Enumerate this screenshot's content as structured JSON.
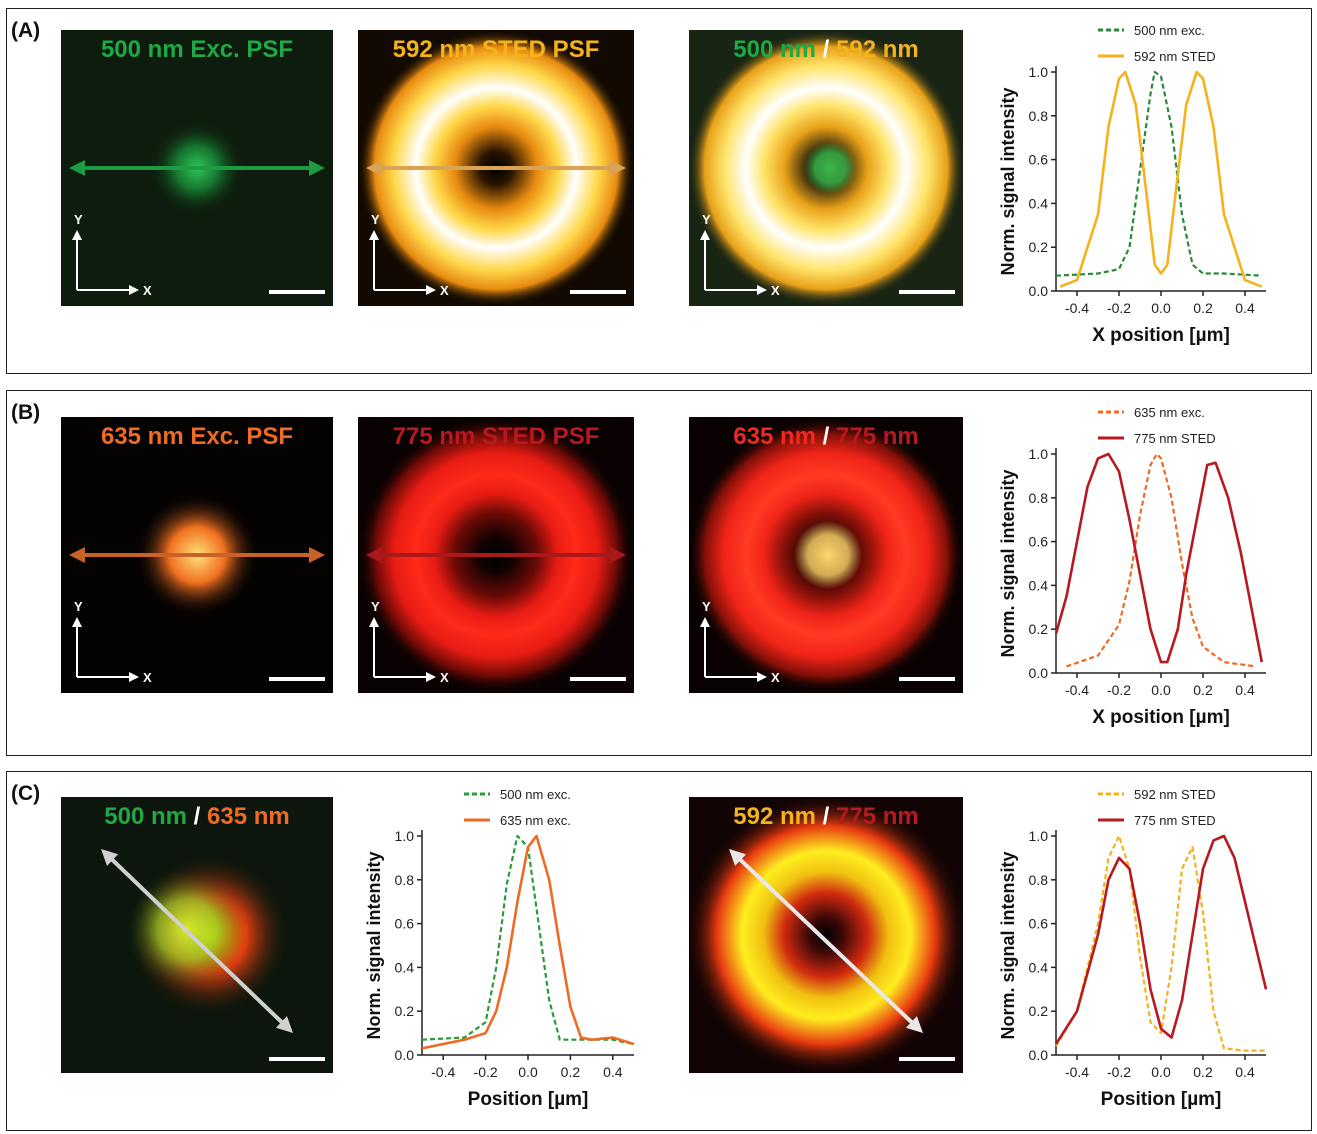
{
  "panels": {
    "A": {
      "label": "(A)",
      "images": [
        {
          "title_parts": [
            {
              "text": "500 nm Exc. PSF",
              "color": "#1fa845"
            }
          ],
          "kind": "spot",
          "colors": [
            "#2ec45a",
            "#16762e",
            "#0c2a12"
          ],
          "bg": "#0e1c0e",
          "arrow_color": "#1f9a44",
          "arrow": "h",
          "axes": true
        },
        {
          "title_parts": [
            {
              "text": "592 nm STED PSF",
              "color": "#f4b21d"
            }
          ],
          "kind": "donut",
          "colors": [
            "#ffffff",
            "#ffd84a",
            "#e88a10",
            "#2a1400"
          ],
          "bg": "#120a02",
          "arrow_color": "#d9a254",
          "arrow": "h",
          "axes": true
        },
        {
          "title_parts": [
            {
              "text": "500 nm",
              "color": "#1fa845"
            },
            {
              "text": " / ",
              "color": "#ffffff"
            },
            {
              "text": "592 nm",
              "color": "#f4b21d"
            }
          ],
          "kind": "donut-center",
          "colors": [
            "#ffffff",
            "#ffe46a",
            "#e8a018",
            "#1a1a0c"
          ],
          "bg": "#182414",
          "center": "#3db84a",
          "arrow": "none",
          "axes": true
        }
      ],
      "scale_bar": "",
      "axis_y": "Y",
      "axis_x": "X",
      "chart": {
        "type": "line",
        "legend": [
          "500 nm exc.",
          "592 nm STED"
        ],
        "ylabel": "Norm. signal intensity",
        "xlabel": "X position [µm]",
        "xticks": [
          "-0.4",
          "-0.2",
          "0.0",
          "0.2",
          "0.4"
        ],
        "yticks": [
          "0.0",
          "0.2",
          "0.4",
          "0.6",
          "0.8",
          "1.0"
        ]
      }
    },
    "B": {
      "label": "(B)",
      "images": [
        {
          "title_parts": [
            {
              "text": "635 nm Exc. PSF",
              "color": "#ee6a25"
            }
          ],
          "kind": "spot",
          "colors": [
            "#ffe27a",
            "#f07020",
            "#8a1a08"
          ],
          "bg": "#050202",
          "arrow_color": "#c86228",
          "arrow": "h",
          "axes": true
        },
        {
          "title_parts": [
            {
              "text": "775 nm STED PSF",
              "color": "#b8191e"
            }
          ],
          "kind": "donut",
          "colors": [
            "#ff2a1a",
            "#e81c14",
            "#6a0a06",
            "#100202"
          ],
          "bg": "#0a0202",
          "arrow_color": "#a8191c",
          "arrow": "h",
          "axes": true
        },
        {
          "title_parts": [
            {
              "text": "635 nm",
              "color": "#ee2a20"
            },
            {
              "text": " / ",
              "color": "#ffffff"
            },
            {
              "text": "775 nm",
              "color": "#b8191e"
            }
          ],
          "kind": "donut-center",
          "colors": [
            "#ff3a24",
            "#f02418",
            "#801008",
            "#100202"
          ],
          "bg": "#0a0202",
          "center": "#ffd56a",
          "arrow": "none",
          "axes": true
        }
      ],
      "chart": {
        "type": "line",
        "legend": [
          "635 nm exc.",
          "775 nm STED"
        ],
        "ylabel": "Norm. signal intensity",
        "xlabel": "X position [µm]",
        "xticks": [
          "-0.4",
          "-0.2",
          "0.0",
          "0.2",
          "0.4"
        ],
        "yticks": [
          "0.0",
          "0.2",
          "0.4",
          "0.6",
          "0.8",
          "1.0"
        ]
      }
    },
    "C": {
      "label": "(C)",
      "images": [
        {
          "title_parts": [
            {
              "text": "500 nm",
              "color": "#1fa845"
            },
            {
              "text": " / ",
              "color": "#ffffff"
            },
            {
              "text": "635 nm",
              "color": "#ee6a25"
            }
          ],
          "kind": "overlap",
          "bg": "#0c160c",
          "arrow": "diag",
          "arrow_color": "#d0d0d0",
          "axes": false
        },
        {
          "title_parts": [
            {
              "text": "592 nm",
              "color": "#f4b21d"
            },
            {
              "text": " / ",
              "color": "#ffffff"
            },
            {
              "text": "775 nm",
              "color": "#b8191e"
            }
          ],
          "kind": "donut-sted",
          "bg": "#120404",
          "arrow": "diag",
          "arrow_color": "#e8e8e8",
          "axes": false
        }
      ],
      "chart1": {
        "type": "line",
        "legend": [
          "500 nm exc.",
          "635 nm exc."
        ],
        "ylabel": "Norm. signal intensity",
        "xlabel": "Position [µm]",
        "xticks": [
          "-0.4",
          "-0.2",
          "0.0",
          "0.2",
          "0.4"
        ],
        "yticks": [
          "0.0",
          "0.2",
          "0.4",
          "0.6",
          "0.8",
          "1.0"
        ]
      },
      "chart2": {
        "type": "line",
        "legend": [
          "592 nm STED",
          "775 nm STED"
        ],
        "ylabel": "Norm. signal intensity",
        "xlabel": "Position [µm]",
        "xticks": [
          "-0.4",
          "-0.2",
          "0.0",
          "0.2",
          "0.4"
        ],
        "yticks": [
          "0.0",
          "0.2",
          "0.4",
          "0.6",
          "0.8",
          "1.0"
        ]
      }
    }
  },
  "chart_data": [
    {
      "type": "line",
      "xlabel": "X position [µm]",
      "ylabel": "Norm. signal intensity",
      "xlim": [
        -0.5,
        0.5
      ],
      "ylim": [
        0,
        1.0
      ],
      "series": [
        {
          "name": "500 nm exc.",
          "color": "#2a8a3a",
          "dash": true,
          "x": [
            -0.5,
            -0.3,
            -0.2,
            -0.15,
            -0.1,
            -0.05,
            -0.03,
            0.0,
            0.05,
            0.1,
            0.15,
            0.2,
            0.3,
            0.48
          ],
          "y": [
            0.07,
            0.08,
            0.1,
            0.2,
            0.55,
            0.9,
            1.0,
            0.98,
            0.75,
            0.35,
            0.12,
            0.08,
            0.08,
            0.07
          ]
        },
        {
          "name": "592 nm STED",
          "color": "#f4b21d",
          "dash": false,
          "x": [
            -0.48,
            -0.4,
            -0.3,
            -0.25,
            -0.2,
            -0.17,
            -0.12,
            -0.07,
            -0.03,
            0.0,
            0.03,
            0.07,
            0.12,
            0.17,
            0.2,
            0.25,
            0.3,
            0.4,
            0.48
          ],
          "y": [
            0.02,
            0.05,
            0.35,
            0.75,
            0.97,
            1.0,
            0.85,
            0.45,
            0.12,
            0.08,
            0.12,
            0.45,
            0.85,
            1.0,
            0.97,
            0.75,
            0.35,
            0.05,
            0.02
          ]
        }
      ]
    },
    {
      "type": "line",
      "xlabel": "X position [µm]",
      "ylabel": "Norm. signal intensity",
      "xlim": [
        -0.5,
        0.5
      ],
      "ylim": [
        0,
        1.0
      ],
      "series": [
        {
          "name": "635 nm exc.",
          "color": "#ee6a25",
          "dash": true,
          "x": [
            -0.45,
            -0.3,
            -0.2,
            -0.15,
            -0.1,
            -0.05,
            -0.02,
            0.0,
            0.05,
            0.1,
            0.15,
            0.2,
            0.3,
            0.45
          ],
          "y": [
            0.03,
            0.08,
            0.22,
            0.42,
            0.72,
            0.95,
            1.0,
            0.98,
            0.8,
            0.5,
            0.25,
            0.12,
            0.05,
            0.03
          ]
        },
        {
          "name": "775 nm STED",
          "color": "#b8191e",
          "dash": false,
          "x": [
            -0.5,
            -0.45,
            -0.4,
            -0.35,
            -0.3,
            -0.25,
            -0.2,
            -0.15,
            -0.1,
            -0.05,
            0.0,
            0.03,
            0.08,
            0.12,
            0.18,
            0.22,
            0.26,
            0.32,
            0.38,
            0.43,
            0.48
          ],
          "y": [
            0.18,
            0.35,
            0.6,
            0.85,
            0.98,
            1.0,
            0.92,
            0.7,
            0.45,
            0.2,
            0.05,
            0.05,
            0.2,
            0.45,
            0.75,
            0.95,
            0.96,
            0.8,
            0.55,
            0.3,
            0.05
          ]
        }
      ]
    },
    {
      "type": "line",
      "xlabel": "Position [µm]",
      "ylabel": "Norm. signal intensity",
      "xlim": [
        -0.5,
        0.5
      ],
      "ylim": [
        0,
        1.0
      ],
      "series": [
        {
          "name": "500 nm exc.",
          "color": "#2a9a3a",
          "dash": true,
          "x": [
            -0.5,
            -0.3,
            -0.2,
            -0.15,
            -0.1,
            -0.05,
            0.0,
            0.05,
            0.1,
            0.15,
            0.2,
            0.3,
            0.4,
            0.5
          ],
          "y": [
            0.07,
            0.08,
            0.15,
            0.4,
            0.78,
            1.0,
            0.95,
            0.6,
            0.25,
            0.07,
            0.07,
            0.07,
            0.07,
            0.05
          ]
        },
        {
          "name": "635 nm exc.",
          "color": "#ee6a25",
          "dash": false,
          "x": [
            -0.5,
            -0.3,
            -0.2,
            -0.15,
            -0.1,
            -0.05,
            0.0,
            0.04,
            0.1,
            0.15,
            0.2,
            0.25,
            0.3,
            0.4,
            0.5
          ],
          "y": [
            0.03,
            0.07,
            0.1,
            0.2,
            0.4,
            0.7,
            0.95,
            1.0,
            0.8,
            0.5,
            0.22,
            0.08,
            0.07,
            0.08,
            0.05
          ]
        }
      ]
    },
    {
      "type": "line",
      "xlabel": "Position [µm]",
      "ylabel": "Norm. signal intensity",
      "xlim": [
        -0.5,
        0.5
      ],
      "ylim": [
        0,
        1.0
      ],
      "series": [
        {
          "name": "592 nm STED",
          "color": "#f4b21d",
          "dash": true,
          "x": [
            -0.5,
            -0.4,
            -0.3,
            -0.25,
            -0.2,
            -0.15,
            -0.1,
            -0.05,
            0.0,
            0.05,
            0.1,
            0.15,
            0.2,
            0.25,
            0.3,
            0.4,
            0.5
          ],
          "y": [
            0.04,
            0.2,
            0.6,
            0.9,
            1.0,
            0.85,
            0.45,
            0.15,
            0.1,
            0.4,
            0.85,
            0.95,
            0.65,
            0.2,
            0.03,
            0.02,
            0.02
          ]
        },
        {
          "name": "775 nm STED",
          "color": "#b8191e",
          "dash": false,
          "x": [
            -0.5,
            -0.4,
            -0.3,
            -0.25,
            -0.2,
            -0.15,
            -0.1,
            -0.05,
            0.0,
            0.05,
            0.1,
            0.15,
            0.2,
            0.25,
            0.3,
            0.35,
            0.4,
            0.45,
            0.5
          ],
          "y": [
            0.05,
            0.2,
            0.55,
            0.8,
            0.9,
            0.85,
            0.6,
            0.3,
            0.12,
            0.08,
            0.25,
            0.55,
            0.85,
            0.98,
            1.0,
            0.9,
            0.7,
            0.5,
            0.3
          ]
        }
      ]
    }
  ]
}
